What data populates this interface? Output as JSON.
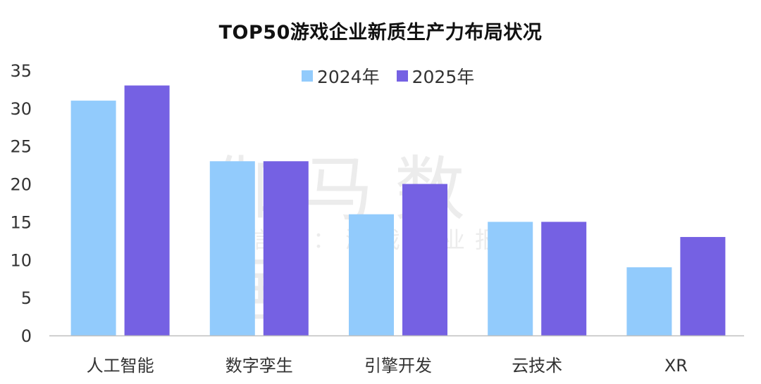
{
  "colors": {
    "series_2024": "#92CBFC",
    "series_2025": "#7561E3",
    "axis": "#BFBFBF",
    "tick_text": "#333333"
  },
  "watermark": {
    "main": "伽马数据",
    "sub": "微信号：游戏产业报告"
  },
  "chart_data": {
    "type": "bar",
    "title": "TOP50游戏企业新质生产力布局状况",
    "categories": [
      "人工智能",
      "数字孪生",
      "引擎开发",
      "云技术",
      "XR"
    ],
    "series": [
      {
        "name": "2024年",
        "values": [
          31,
          23,
          16,
          15,
          9
        ]
      },
      {
        "name": "2025年",
        "values": [
          33,
          23,
          20,
          15,
          13
        ]
      }
    ],
    "ylim": [
      0,
      35
    ],
    "yticks": [
      "0",
      "5",
      "10",
      "15",
      "20",
      "25",
      "30",
      "35"
    ],
    "xlabel": "",
    "ylabel": "",
    "grid": false,
    "legend_position": "top-center"
  }
}
